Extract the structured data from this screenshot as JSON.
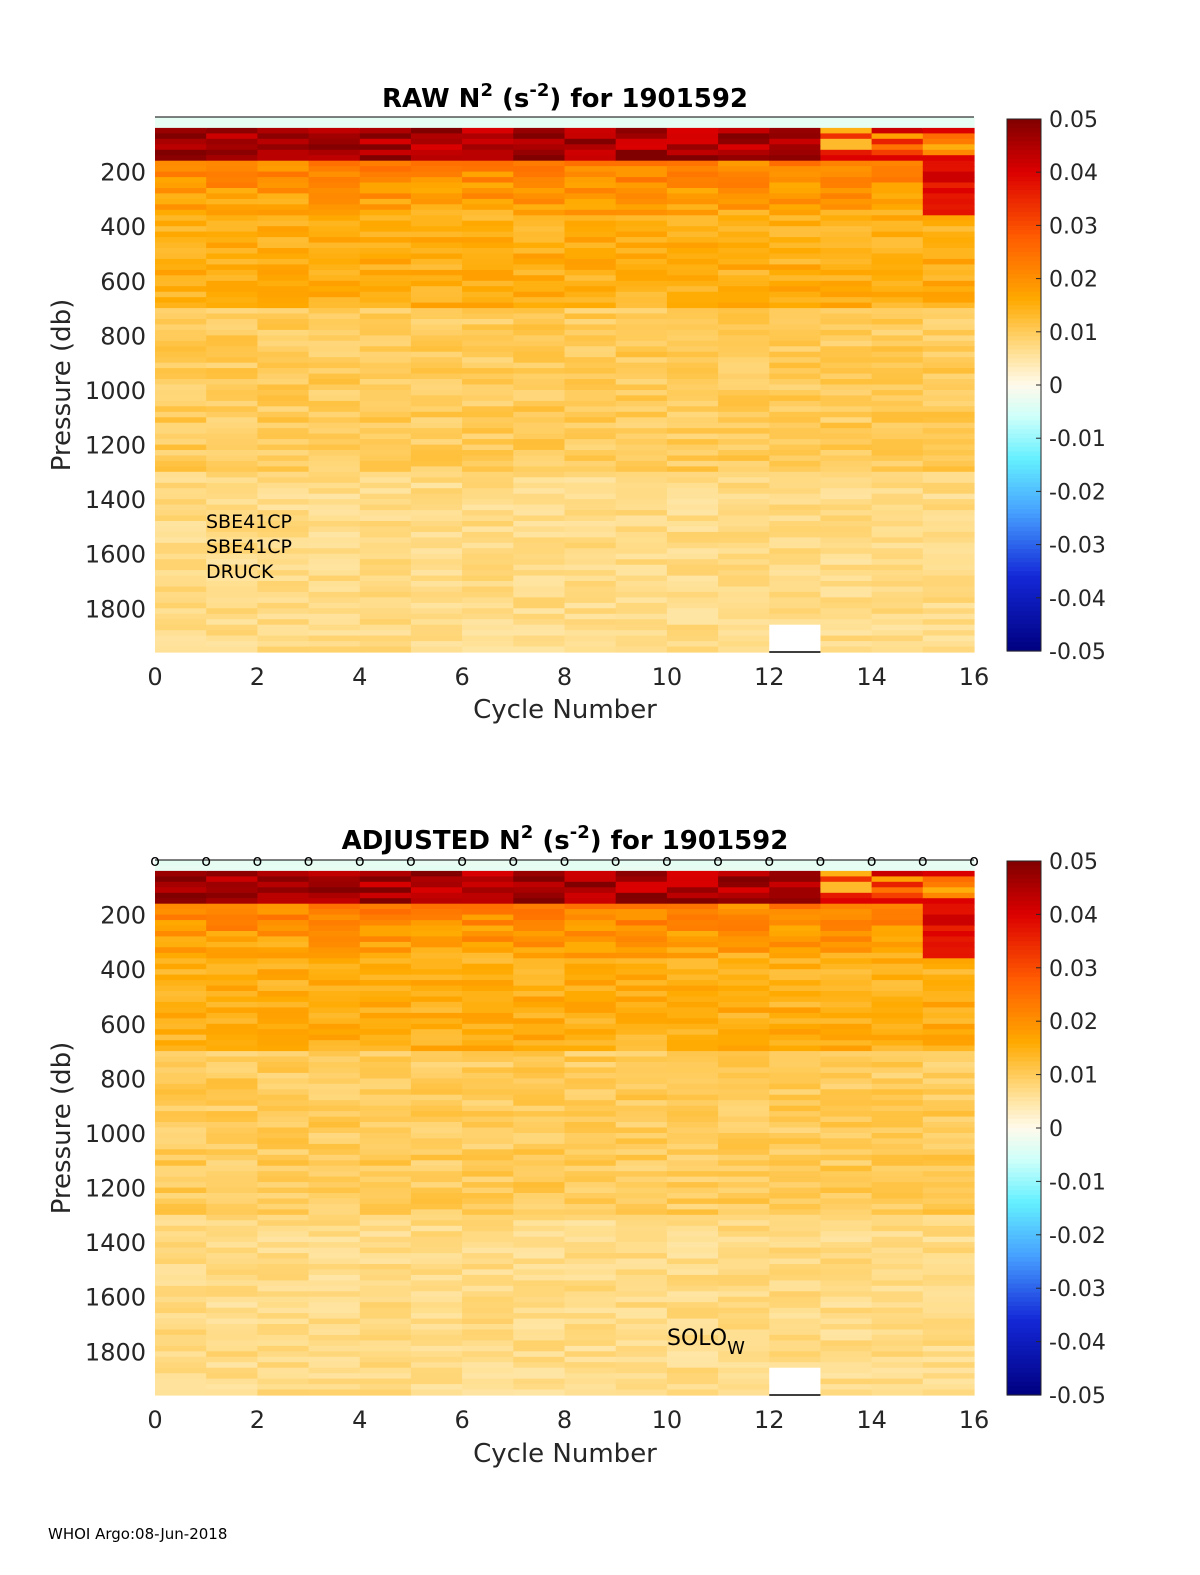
{
  "footer": "WHOI Argo:08-Jun-2018",
  "colorbar": {
    "min": -0.05,
    "max": 0.05,
    "ticks": [
      "0.05",
      "0.04",
      "0.03",
      "0.02",
      "0.01",
      "0",
      "-0.01",
      "-0.02",
      "-0.03",
      "-0.04",
      "-0.05"
    ]
  },
  "chart_data": [
    {
      "type": "heatmap",
      "title_prefix": "RAW N",
      "title_sup1": "2",
      "title_mid": " (s",
      "title_sup2": "-2",
      "title_suffix": ") for 1901592",
      "xlabel": "Cycle Number",
      "ylabel": "Pressure (db)",
      "xlim": [
        0,
        16
      ],
      "ylim": [
        0,
        1960
      ],
      "x_ticks": [
        "0",
        "2",
        "4",
        "6",
        "8",
        "10",
        "12",
        "14",
        "16"
      ],
      "y_ticks": [
        "200",
        "400",
        "600",
        "800",
        "1000",
        "1200",
        "1400",
        "1600",
        "1800"
      ],
      "annotations": [
        "SBE41CP",
        "SBE41CP",
        "DRUCK"
      ],
      "surface_markers": false,
      "missing_cells": [
        {
          "cycle": 12,
          "p_from": 1860,
          "p_to": 1960
        }
      ]
    },
    {
      "type": "heatmap",
      "title_prefix": "ADJUSTED N",
      "title_sup1": "2",
      "title_mid": " (s",
      "title_sup2": "-2",
      "title_suffix": ") for 1901592",
      "xlabel": "Cycle Number",
      "ylabel": "Pressure (db)",
      "xlim": [
        0,
        16
      ],
      "ylim": [
        0,
        1960
      ],
      "x_ticks": [
        "0",
        "2",
        "4",
        "6",
        "8",
        "10",
        "12",
        "14",
        "16"
      ],
      "y_ticks": [
        "200",
        "400",
        "600",
        "800",
        "1000",
        "1200",
        "1400",
        "1600",
        "1800"
      ],
      "label_main": "SOLO",
      "label_sub": "W",
      "marker_symbol": "o",
      "surface_markers": true,
      "missing_cells": [
        {
          "cycle": 12,
          "p_from": 1860,
          "p_to": 1960
        }
      ]
    }
  ]
}
